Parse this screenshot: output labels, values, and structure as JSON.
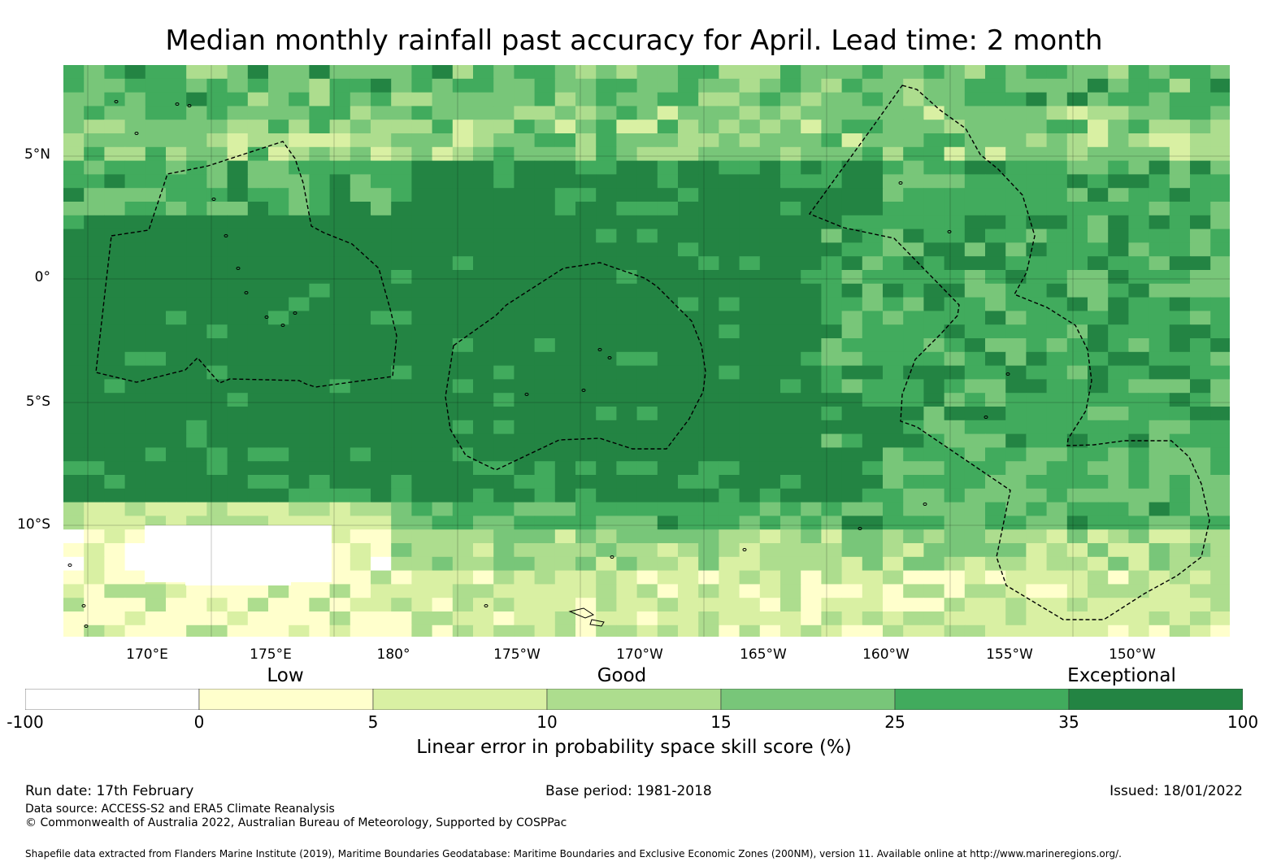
{
  "title": "Median monthly rainfall past accuracy for April. Lead time: 2 month",
  "map": {
    "lat_labels": [
      "5°N",
      "0°",
      "5°S",
      "10°S"
    ],
    "lon_labels": [
      "170°E",
      "175°E",
      "180°",
      "175°W",
      "170°W",
      "165°W",
      "160°W",
      "155°W",
      "150°W"
    ],
    "extent": {
      "lon_min": 166.6,
      "lon_max": 214.0,
      "lat_min": -14.6,
      "lat_max": 8.7
    },
    "skill_classes": [
      {
        "range": "-100 to 0",
        "color": "#ffffff"
      },
      {
        "range": "0 to 5",
        "color": "#ffffcc"
      },
      {
        "range": "5 to 10",
        "color": "#d9f0a3"
      },
      {
        "range": "10 to 15",
        "color": "#addd8e"
      },
      {
        "range": "15 to 25",
        "color": "#78c679"
      },
      {
        "range": "25 to 35",
        "color": "#41ab5d"
      },
      {
        "range": "35 to 100",
        "color": "#238443"
      }
    ]
  },
  "colorbar": {
    "categories": [
      "Low",
      "Good",
      "Exceptional"
    ],
    "ticks": [
      "-100",
      "0",
      "5",
      "10",
      "15",
      "25",
      "35",
      "100"
    ],
    "colors": [
      "#ffffff",
      "#ffffcc",
      "#d9f0a3",
      "#addd8e",
      "#78c679",
      "#41ab5d",
      "#238443"
    ],
    "title": "Linear error in probability space skill score (%)"
  },
  "footer": {
    "run_date": "Run date: 17th February",
    "base_period": "Base period: 1981-2018",
    "issued": "Issued: 18/01/2022",
    "data_source": "Data source: ACCESS-S2 and ERA5 Climate Reanalysis",
    "copyright": "© Commonwealth of Australia 2022, Australian Bureau of Meteorology, Supported by COSPPac",
    "shapefile_note": "Shapefile data extracted from Flanders Marine Institute (2019), Maritime Boundaries Geodatabase: Maritime Boundaries and Exclusive Economic Zones (200NM), version 11. Available online at http://www.marineregions.org/."
  }
}
